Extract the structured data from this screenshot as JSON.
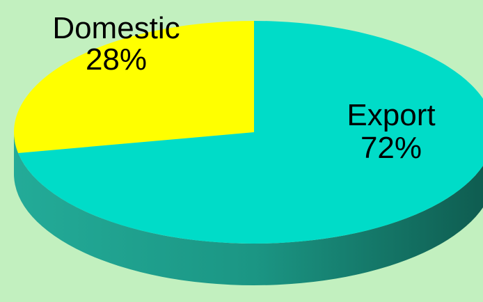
{
  "chart_data": {
    "type": "pie",
    "style": "3d",
    "slices": [
      {
        "label": "Domestic",
        "percent_label": "28%",
        "value": 28,
        "color": "#ffff00"
      },
      {
        "label": "Export",
        "percent_label": "72%",
        "value": 72,
        "color": "#00dcc8"
      }
    ],
    "title": "",
    "legend": "none"
  },
  "colors": {
    "background": "#c2f0bf",
    "edge_dark": "#0e5a4e",
    "edge_light": "#23ab98"
  }
}
